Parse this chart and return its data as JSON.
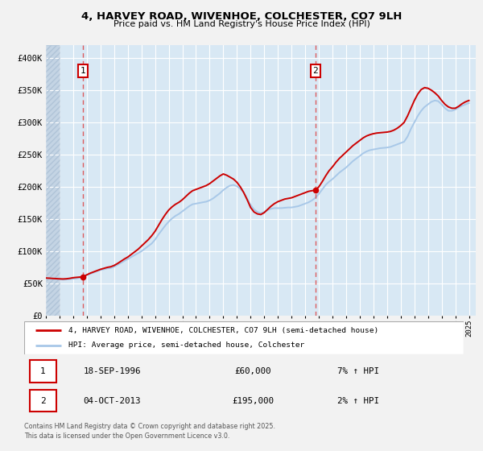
{
  "title": "4, HARVEY ROAD, WIVENHOE, COLCHESTER, CO7 9LH",
  "subtitle": "Price paid vs. HM Land Registry's House Price Index (HPI)",
  "xlim": [
    1994.0,
    2025.5
  ],
  "ylim": [
    0,
    420000
  ],
  "yticks": [
    0,
    50000,
    100000,
    150000,
    200000,
    250000,
    300000,
    350000,
    400000
  ],
  "ytick_labels": [
    "£0",
    "£50K",
    "£100K",
    "£150K",
    "£200K",
    "£250K",
    "£300K",
    "£350K",
    "£400K"
  ],
  "fig_bg": "#f2f2f2",
  "plot_bg": "#d8e8f4",
  "hatch_bg": "#c4d4e4",
  "grid_color": "#ffffff",
  "hpi_color": "#a8c8e8",
  "price_color": "#cc0000",
  "dashed_color": "#dd4444",
  "sale1_x": 1996.72,
  "sale1_y": 60000,
  "sale1_label": "1",
  "sale2_x": 2013.75,
  "sale2_y": 195000,
  "sale2_label": "2",
  "legend_line1": "4, HARVEY ROAD, WIVENHOE, COLCHESTER, CO7 9LH (semi-detached house)",
  "legend_line2": "HPI: Average price, semi-detached house, Colchester",
  "table_row1_num": "1",
  "table_row1_date": "18-SEP-1996",
  "table_row1_price": "£60,000",
  "table_row1_hpi": "7% ↑ HPI",
  "table_row2_num": "2",
  "table_row2_date": "04-OCT-2013",
  "table_row2_price": "£195,000",
  "table_row2_hpi": "2% ↑ HPI",
  "footer": "Contains HM Land Registry data © Crown copyright and database right 2025.\nThis data is licensed under the Open Government Licence v3.0.",
  "hpi_data": [
    [
      1994.0,
      58000
    ],
    [
      1994.25,
      57500
    ],
    [
      1994.5,
      57000
    ],
    [
      1994.75,
      56800
    ],
    [
      1995.0,
      56500
    ],
    [
      1995.25,
      56000
    ],
    [
      1995.5,
      56200
    ],
    [
      1995.75,
      56800
    ],
    [
      1996.0,
      57500
    ],
    [
      1996.25,
      58000
    ],
    [
      1996.5,
      59000
    ],
    [
      1996.75,
      60500
    ],
    [
      1997.0,
      63000
    ],
    [
      1997.25,
      65000
    ],
    [
      1997.5,
      67000
    ],
    [
      1997.75,
      69000
    ],
    [
      1998.0,
      71000
    ],
    [
      1998.25,
      72000
    ],
    [
      1998.5,
      73500
    ],
    [
      1998.75,
      74000
    ],
    [
      1999.0,
      76000
    ],
    [
      1999.25,
      79000
    ],
    [
      1999.5,
      82000
    ],
    [
      1999.75,
      85000
    ],
    [
      2000.0,
      88000
    ],
    [
      2000.25,
      91000
    ],
    [
      2000.5,
      94000
    ],
    [
      2000.75,
      97000
    ],
    [
      2001.0,
      100000
    ],
    [
      2001.25,
      104000
    ],
    [
      2001.5,
      108000
    ],
    [
      2001.75,
      112000
    ],
    [
      2002.0,
      118000
    ],
    [
      2002.25,
      126000
    ],
    [
      2002.5,
      133000
    ],
    [
      2002.75,
      140000
    ],
    [
      2003.0,
      146000
    ],
    [
      2003.25,
      151000
    ],
    [
      2003.5,
      155000
    ],
    [
      2003.75,
      158000
    ],
    [
      2004.0,
      162000
    ],
    [
      2004.25,
      166000
    ],
    [
      2004.5,
      170000
    ],
    [
      2004.75,
      173000
    ],
    [
      2005.0,
      174000
    ],
    [
      2005.25,
      175000
    ],
    [
      2005.5,
      176000
    ],
    [
      2005.75,
      177000
    ],
    [
      2006.0,
      179000
    ],
    [
      2006.25,
      182000
    ],
    [
      2006.5,
      186000
    ],
    [
      2006.75,
      190000
    ],
    [
      2007.0,
      195000
    ],
    [
      2007.25,
      199000
    ],
    [
      2007.5,
      202000
    ],
    [
      2007.75,
      203000
    ],
    [
      2008.0,
      201000
    ],
    [
      2008.25,
      197000
    ],
    [
      2008.5,
      191000
    ],
    [
      2008.75,
      182000
    ],
    [
      2009.0,
      172000
    ],
    [
      2009.25,
      165000
    ],
    [
      2009.5,
      161000
    ],
    [
      2009.75,
      159000
    ],
    [
      2010.0,
      161000
    ],
    [
      2010.25,
      164000
    ],
    [
      2010.5,
      166000
    ],
    [
      2010.75,
      167000
    ],
    [
      2011.0,
      167000
    ],
    [
      2011.25,
      167000
    ],
    [
      2011.5,
      167500
    ],
    [
      2011.75,
      168000
    ],
    [
      2012.0,
      168000
    ],
    [
      2012.25,
      169000
    ],
    [
      2012.5,
      170000
    ],
    [
      2012.75,
      172000
    ],
    [
      2013.0,
      174000
    ],
    [
      2013.25,
      176000
    ],
    [
      2013.5,
      179000
    ],
    [
      2013.75,
      183000
    ],
    [
      2014.0,
      189000
    ],
    [
      2014.25,
      196000
    ],
    [
      2014.5,
      203000
    ],
    [
      2014.75,
      208000
    ],
    [
      2015.0,
      212000
    ],
    [
      2015.25,
      217000
    ],
    [
      2015.5,
      222000
    ],
    [
      2015.75,
      226000
    ],
    [
      2016.0,
      230000
    ],
    [
      2016.25,
      235000
    ],
    [
      2016.5,
      240000
    ],
    [
      2016.75,
      244000
    ],
    [
      2017.0,
      248000
    ],
    [
      2017.25,
      252000
    ],
    [
      2017.5,
      255000
    ],
    [
      2017.75,
      257000
    ],
    [
      2018.0,
      258000
    ],
    [
      2018.25,
      259000
    ],
    [
      2018.5,
      260000
    ],
    [
      2018.75,
      260500
    ],
    [
      2019.0,
      261000
    ],
    [
      2019.25,
      262000
    ],
    [
      2019.5,
      264000
    ],
    [
      2019.75,
      266000
    ],
    [
      2020.0,
      268000
    ],
    [
      2020.25,
      270000
    ],
    [
      2020.5,
      278000
    ],
    [
      2020.75,
      290000
    ],
    [
      2021.0,
      300000
    ],
    [
      2021.25,
      310000
    ],
    [
      2021.5,
      318000
    ],
    [
      2021.75,
      324000
    ],
    [
      2022.0,
      328000
    ],
    [
      2022.25,
      332000
    ],
    [
      2022.5,
      334000
    ],
    [
      2022.75,
      333000
    ],
    [
      2023.0,
      328000
    ],
    [
      2023.25,
      322000
    ],
    [
      2023.5,
      318000
    ],
    [
      2023.75,
      318000
    ],
    [
      2024.0,
      320000
    ],
    [
      2024.25,
      323000
    ],
    [
      2024.5,
      326000
    ],
    [
      2024.75,
      328000
    ],
    [
      2025.0,
      330000
    ]
  ],
  "price_data": [
    [
      1994.0,
      58500
    ],
    [
      1994.25,
      58200
    ],
    [
      1994.5,
      57800
    ],
    [
      1994.75,
      57500
    ],
    [
      1995.0,
      57200
    ],
    [
      1995.25,
      57000
    ],
    [
      1995.5,
      57300
    ],
    [
      1995.75,
      58000
    ],
    [
      1996.0,
      59000
    ],
    [
      1996.25,
      59500
    ],
    [
      1996.5,
      60000
    ],
    [
      1996.72,
      60000
    ],
    [
      1997.0,
      63500
    ],
    [
      1997.25,
      66000
    ],
    [
      1997.5,
      68000
    ],
    [
      1997.75,
      70000
    ],
    [
      1998.0,
      72000
    ],
    [
      1998.25,
      73500
    ],
    [
      1998.5,
      75000
    ],
    [
      1998.75,
      76000
    ],
    [
      1999.0,
      78000
    ],
    [
      1999.25,
      81000
    ],
    [
      1999.5,
      84500
    ],
    [
      1999.75,
      88000
    ],
    [
      2000.0,
      91000
    ],
    [
      2000.25,
      95000
    ],
    [
      2000.5,
      99000
    ],
    [
      2000.75,
      103000
    ],
    [
      2001.0,
      108000
    ],
    [
      2001.25,
      113000
    ],
    [
      2001.5,
      118000
    ],
    [
      2001.75,
      124000
    ],
    [
      2002.0,
      131000
    ],
    [
      2002.25,
      140000
    ],
    [
      2002.5,
      149000
    ],
    [
      2002.75,
      157000
    ],
    [
      2003.0,
      164000
    ],
    [
      2003.25,
      169000
    ],
    [
      2003.5,
      173000
    ],
    [
      2003.75,
      176000
    ],
    [
      2004.0,
      180000
    ],
    [
      2004.25,
      185000
    ],
    [
      2004.5,
      190000
    ],
    [
      2004.75,
      194000
    ],
    [
      2005.0,
      196000
    ],
    [
      2005.25,
      198000
    ],
    [
      2005.5,
      200000
    ],
    [
      2005.75,
      202000
    ],
    [
      2006.0,
      205000
    ],
    [
      2006.25,
      209000
    ],
    [
      2006.5,
      213000
    ],
    [
      2006.75,
      217000
    ],
    [
      2007.0,
      220000
    ],
    [
      2007.25,
      218000
    ],
    [
      2007.5,
      215000
    ],
    [
      2007.75,
      212000
    ],
    [
      2008.0,
      207000
    ],
    [
      2008.25,
      200000
    ],
    [
      2008.5,
      191000
    ],
    [
      2008.75,
      180000
    ],
    [
      2009.0,
      168000
    ],
    [
      2009.25,
      161000
    ],
    [
      2009.5,
      158000
    ],
    [
      2009.75,
      157000
    ],
    [
      2010.0,
      160000
    ],
    [
      2010.25,
      165000
    ],
    [
      2010.5,
      170000
    ],
    [
      2010.75,
      174000
    ],
    [
      2011.0,
      177000
    ],
    [
      2011.25,
      179000
    ],
    [
      2011.5,
      181000
    ],
    [
      2011.75,
      182000
    ],
    [
      2012.0,
      183000
    ],
    [
      2012.25,
      185000
    ],
    [
      2012.5,
      187000
    ],
    [
      2012.75,
      189000
    ],
    [
      2013.0,
      191000
    ],
    [
      2013.25,
      193000
    ],
    [
      2013.5,
      194000
    ],
    [
      2013.75,
      195000
    ],
    [
      2014.0,
      200000
    ],
    [
      2014.25,
      208000
    ],
    [
      2014.5,
      217000
    ],
    [
      2014.75,
      225000
    ],
    [
      2015.0,
      231000
    ],
    [
      2015.25,
      238000
    ],
    [
      2015.5,
      244000
    ],
    [
      2015.75,
      249000
    ],
    [
      2016.0,
      254000
    ],
    [
      2016.25,
      259000
    ],
    [
      2016.5,
      264000
    ],
    [
      2016.75,
      268000
    ],
    [
      2017.0,
      272000
    ],
    [
      2017.25,
      276000
    ],
    [
      2017.5,
      279000
    ],
    [
      2017.75,
      281000
    ],
    [
      2018.0,
      282500
    ],
    [
      2018.25,
      283500
    ],
    [
      2018.5,
      284000
    ],
    [
      2018.75,
      284500
    ],
    [
      2019.0,
      285000
    ],
    [
      2019.25,
      286000
    ],
    [
      2019.5,
      288000
    ],
    [
      2019.75,
      291000
    ],
    [
      2020.0,
      295000
    ],
    [
      2020.25,
      300000
    ],
    [
      2020.5,
      310000
    ],
    [
      2020.75,
      322000
    ],
    [
      2021.0,
      334000
    ],
    [
      2021.25,
      344000
    ],
    [
      2021.5,
      351000
    ],
    [
      2021.75,
      354000
    ],
    [
      2022.0,
      353000
    ],
    [
      2022.25,
      350000
    ],
    [
      2022.5,
      346000
    ],
    [
      2022.75,
      341000
    ],
    [
      2023.0,
      334000
    ],
    [
      2023.25,
      328000
    ],
    [
      2023.5,
      324000
    ],
    [
      2023.75,
      322000
    ],
    [
      2024.0,
      322000
    ],
    [
      2024.25,
      325000
    ],
    [
      2024.5,
      329000
    ],
    [
      2024.75,
      332000
    ],
    [
      2025.0,
      334000
    ]
  ]
}
